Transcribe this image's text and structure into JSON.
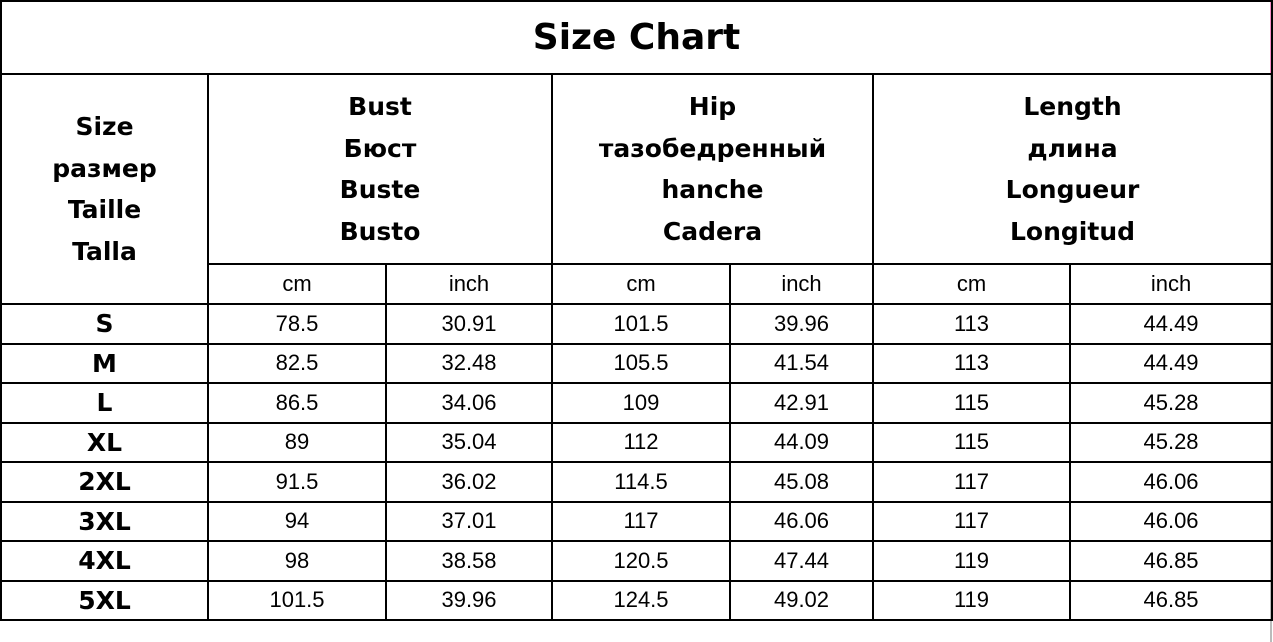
{
  "chart_data": {
    "type": "table",
    "title": "Size Chart",
    "size_header": [
      "Size",
      "размер",
      "Taille",
      "Talla"
    ],
    "groups": [
      {
        "labels": [
          "Bust",
          "Бюст",
          "Buste",
          "Busto"
        ]
      },
      {
        "labels": [
          "Hip",
          "тазобедренный",
          "hanche",
          "Cadera"
        ]
      },
      {
        "labels": [
          "Length",
          "длина",
          "Longueur",
          "Longitud"
        ]
      }
    ],
    "units": [
      "cm",
      "inch",
      "cm",
      "inch",
      "cm",
      "inch"
    ],
    "rows": [
      {
        "size": "S",
        "values": [
          "78.5",
          "30.91",
          "101.5",
          "39.96",
          "113",
          "44.49"
        ]
      },
      {
        "size": "M",
        "values": [
          "82.5",
          "32.48",
          "105.5",
          "41.54",
          "113",
          "44.49"
        ]
      },
      {
        "size": "L",
        "values": [
          "86.5",
          "34.06",
          "109",
          "42.91",
          "115",
          "45.28"
        ]
      },
      {
        "size": "XL",
        "values": [
          "89",
          "35.04",
          "112",
          "44.09",
          "115",
          "45.28"
        ]
      },
      {
        "size": "2XL",
        "values": [
          "91.5",
          "36.02",
          "114.5",
          "45.08",
          "117",
          "46.06"
        ]
      },
      {
        "size": "3XL",
        "values": [
          "94",
          "37.01",
          "117",
          "46.06",
          "117",
          "46.06"
        ]
      },
      {
        "size": "4XL",
        "values": [
          "98",
          "38.58",
          "120.5",
          "47.44",
          "119",
          "46.85"
        ]
      },
      {
        "size": "5XL",
        "values": [
          "101.5",
          "39.96",
          "124.5",
          "49.02",
          "119",
          "46.85"
        ]
      }
    ]
  }
}
